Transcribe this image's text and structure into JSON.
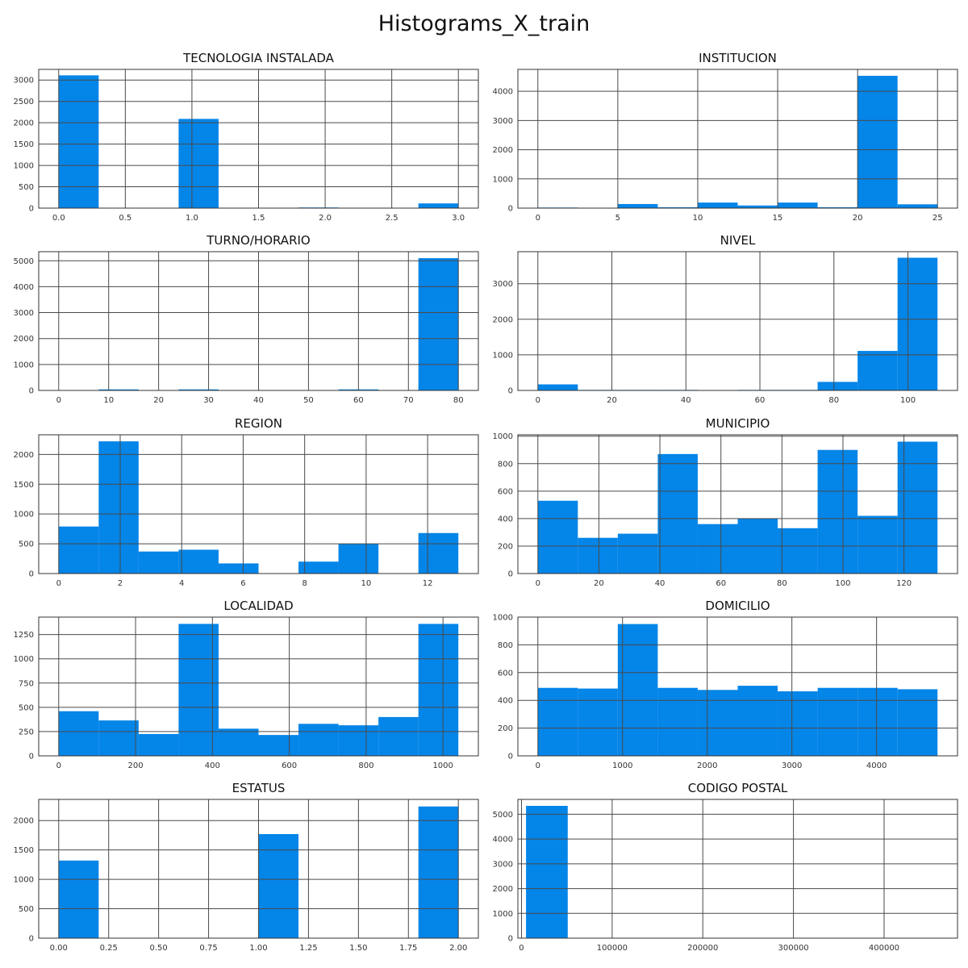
{
  "figure": {
    "title": "Histograms_X_train",
    "bar_color": "#0485e8"
  },
  "chart_data": [
    {
      "type": "bar",
      "title": "TECNOLOGIA INSTALADA",
      "xlim": [
        -0.15,
        3.15
      ],
      "ylim": [
        0,
        3250
      ],
      "xticks": [
        0,
        0.5,
        1,
        1.5,
        2,
        2.5,
        3
      ],
      "xtick_labels": [
        "0.0",
        "0.5",
        "1.0",
        "1.5",
        "2.0",
        "2.5",
        "3.0"
      ],
      "yticks": [
        0,
        500,
        1000,
        1500,
        2000,
        2500,
        3000
      ],
      "yticks_labels": [
        "0",
        "500",
        "1000",
        "1500",
        "2000",
        "2500",
        "3000"
      ],
      "bin_edges": [
        0,
        0.3,
        0.6,
        0.9,
        1.2,
        1.5,
        1.8,
        2.1,
        2.4,
        2.7,
        3.0
      ],
      "values": [
        3110,
        0,
        0,
        2090,
        0,
        0,
        15,
        0,
        0,
        110
      ],
      "grid": true
    },
    {
      "type": "bar",
      "title": "INSTITUCION",
      "xlim": [
        -1.25,
        26.25
      ],
      "ylim": [
        0,
        4750
      ],
      "xticks": [
        0,
        5,
        10,
        15,
        20,
        25
      ],
      "xtick_labels": [
        "0",
        "5",
        "10",
        "15",
        "20",
        "25"
      ],
      "yticks": [
        0,
        1000,
        2000,
        3000,
        4000
      ],
      "yticks_labels": [
        "0",
        "1000",
        "2000",
        "3000",
        "4000"
      ],
      "bin_edges": [
        0,
        2.5,
        5,
        7.5,
        10,
        12.5,
        15,
        17.5,
        20,
        22.5,
        25
      ],
      "values": [
        20,
        0,
        140,
        30,
        190,
        90,
        190,
        30,
        4530,
        130
      ],
      "grid": true
    },
    {
      "type": "bar",
      "title": "TURNO/HORARIO",
      "xlim": [
        -4,
        84
      ],
      "ylim": [
        0,
        5350
      ],
      "xticks": [
        0,
        10,
        20,
        30,
        40,
        50,
        60,
        70,
        80
      ],
      "xtick_labels": [
        "0",
        "10",
        "20",
        "30",
        "40",
        "50",
        "60",
        "70",
        "80"
      ],
      "yticks": [
        0,
        1000,
        2000,
        3000,
        4000,
        5000
      ],
      "yticks_labels": [
        "0",
        "1000",
        "2000",
        "3000",
        "4000",
        "5000"
      ],
      "bin_edges": [
        0,
        8,
        16,
        24,
        32,
        40,
        48,
        56,
        64,
        72,
        80
      ],
      "values": [
        0,
        40,
        15,
        40,
        0,
        15,
        0,
        40,
        0,
        5100
      ],
      "grid": true
    },
    {
      "type": "bar",
      "title": "NIVEL",
      "xlim": [
        -5.4,
        113.4
      ],
      "ylim": [
        0,
        3900
      ],
      "xticks": [
        0,
        20,
        40,
        60,
        80,
        100
      ],
      "xtick_labels": [
        "0",
        "20",
        "40",
        "60",
        "80",
        "100"
      ],
      "yticks": [
        0,
        1000,
        2000,
        3000
      ],
      "yticks_labels": [
        "0",
        "1000",
        "2000",
        "3000"
      ],
      "bin_edges": [
        0,
        10.8,
        21.6,
        32.4,
        43.2,
        54,
        64.8,
        75.6,
        86.4,
        97.2,
        108
      ],
      "values": [
        170,
        15,
        15,
        15,
        0,
        15,
        15,
        240,
        1110,
        3730
      ],
      "grid": true
    },
    {
      "type": "bar",
      "title": "REGION",
      "xlim": [
        -0.65,
        13.65
      ],
      "ylim": [
        0,
        2330
      ],
      "xticks": [
        0,
        2,
        4,
        6,
        8,
        10,
        12
      ],
      "xtick_labels": [
        "0",
        "2",
        "4",
        "6",
        "8",
        "10",
        "12"
      ],
      "yticks": [
        0,
        500,
        1000,
        1500,
        2000
      ],
      "yticks_labels": [
        "0",
        "500",
        "1000",
        "1500",
        "2000"
      ],
      "bin_edges": [
        0,
        1.3,
        2.6,
        3.9,
        5.2,
        6.5,
        7.8,
        9.1,
        10.4,
        11.7,
        13
      ],
      "values": [
        790,
        2220,
        370,
        400,
        170,
        0,
        200,
        500,
        0,
        680
      ],
      "grid": true
    },
    {
      "type": "bar",
      "title": "MUNICIPIO",
      "xlim": [
        -6.55,
        137.55
      ],
      "ylim": [
        0,
        1010
      ],
      "xticks": [
        0,
        20,
        40,
        60,
        80,
        100,
        120
      ],
      "xtick_labels": [
        "0",
        "20",
        "40",
        "60",
        "80",
        "100",
        "120"
      ],
      "yticks": [
        0,
        200,
        400,
        600,
        800,
        1000
      ],
      "yticks_labels": [
        "0",
        "200",
        "400",
        "600",
        "800",
        "1000"
      ],
      "bin_edges": [
        0,
        13.1,
        26.2,
        39.3,
        52.4,
        65.5,
        78.6,
        91.7,
        104.8,
        117.9,
        131
      ],
      "values": [
        530,
        260,
        290,
        870,
        360,
        400,
        330,
        900,
        420,
        960
      ],
      "grid": true
    },
    {
      "type": "bar",
      "title": "LOCALIDAD",
      "xlim": [
        -52,
        1092
      ],
      "ylim": [
        0,
        1430
      ],
      "xticks": [
        0,
        200,
        400,
        600,
        800,
        1000
      ],
      "xtick_labels": [
        "0",
        "200",
        "400",
        "600",
        "800",
        "1000"
      ],
      "yticks": [
        0,
        250,
        500,
        750,
        1000,
        1250
      ],
      "yticks_labels": [
        "0",
        "250",
        "500",
        "750",
        "1000",
        "1250"
      ],
      "bin_edges": [
        0,
        104,
        208,
        312,
        416,
        520,
        624,
        728,
        832,
        936,
        1040
      ],
      "values": [
        460,
        365,
        225,
        1360,
        280,
        215,
        330,
        315,
        400,
        1360
      ],
      "grid": true
    },
    {
      "type": "bar",
      "title": "DOMICILIO",
      "xlim": [
        -236,
        4956
      ],
      "ylim": [
        0,
        1000
      ],
      "xticks": [
        0,
        1000,
        2000,
        3000,
        4000
      ],
      "xtick_labels": [
        "0",
        "1000",
        "2000",
        "3000",
        "4000"
      ],
      "yticks": [
        0,
        200,
        400,
        600,
        800,
        1000
      ],
      "yticks_labels": [
        "0",
        "200",
        "400",
        "600",
        "800",
        "1000"
      ],
      "bin_edges": [
        0,
        472,
        944,
        1416,
        1888,
        2360,
        2832,
        3304,
        3776,
        4248,
        4720
      ],
      "values": [
        490,
        485,
        950,
        490,
        475,
        505,
        465,
        490,
        490,
        480
      ],
      "grid": true
    },
    {
      "type": "bar",
      "title": "ESTATUS",
      "xlim": [
        -0.1,
        2.1
      ],
      "ylim": [
        0,
        2360
      ],
      "xticks": [
        0,
        0.25,
        0.5,
        0.75,
        1,
        1.25,
        1.5,
        1.75,
        2
      ],
      "xtick_labels": [
        "0.00",
        "0.25",
        "0.50",
        "0.75",
        "1.00",
        "1.25",
        "1.50",
        "1.75",
        "2.00"
      ],
      "yticks": [
        0,
        500,
        1000,
        1500,
        2000
      ],
      "yticks_labels": [
        "0",
        "500",
        "1000",
        "1500",
        "2000"
      ],
      "bin_edges": [
        0,
        0.2,
        0.4,
        0.6,
        0.8,
        1.0,
        1.2,
        1.4,
        1.6,
        1.8,
        2.0
      ],
      "values": [
        1320,
        0,
        0,
        0,
        0,
        1770,
        0,
        0,
        0,
        2240
      ],
      "grid": true
    },
    {
      "type": "bar",
      "title": "CODIGO POSTAL",
      "xlim": [
        -4000,
        481000
      ],
      "ylim": [
        0,
        5600
      ],
      "xticks": [
        0,
        100000,
        200000,
        300000,
        400000
      ],
      "xtick_labels": [
        "0",
        "100000",
        "200000",
        "300000",
        "400000"
      ],
      "yticks": [
        0,
        1000,
        2000,
        3000,
        4000,
        5000
      ],
      "yticks_labels": [
        "0",
        "1000",
        "2000",
        "3000",
        "4000",
        "5000"
      ],
      "bin_edges": [
        5000,
        51000,
        97000,
        143000,
        189000,
        235000,
        281000,
        327000,
        373000,
        419000,
        465000
      ],
      "values": [
        5340,
        0,
        0,
        0,
        0,
        0,
        0,
        0,
        0,
        0
      ],
      "grid": true
    }
  ]
}
